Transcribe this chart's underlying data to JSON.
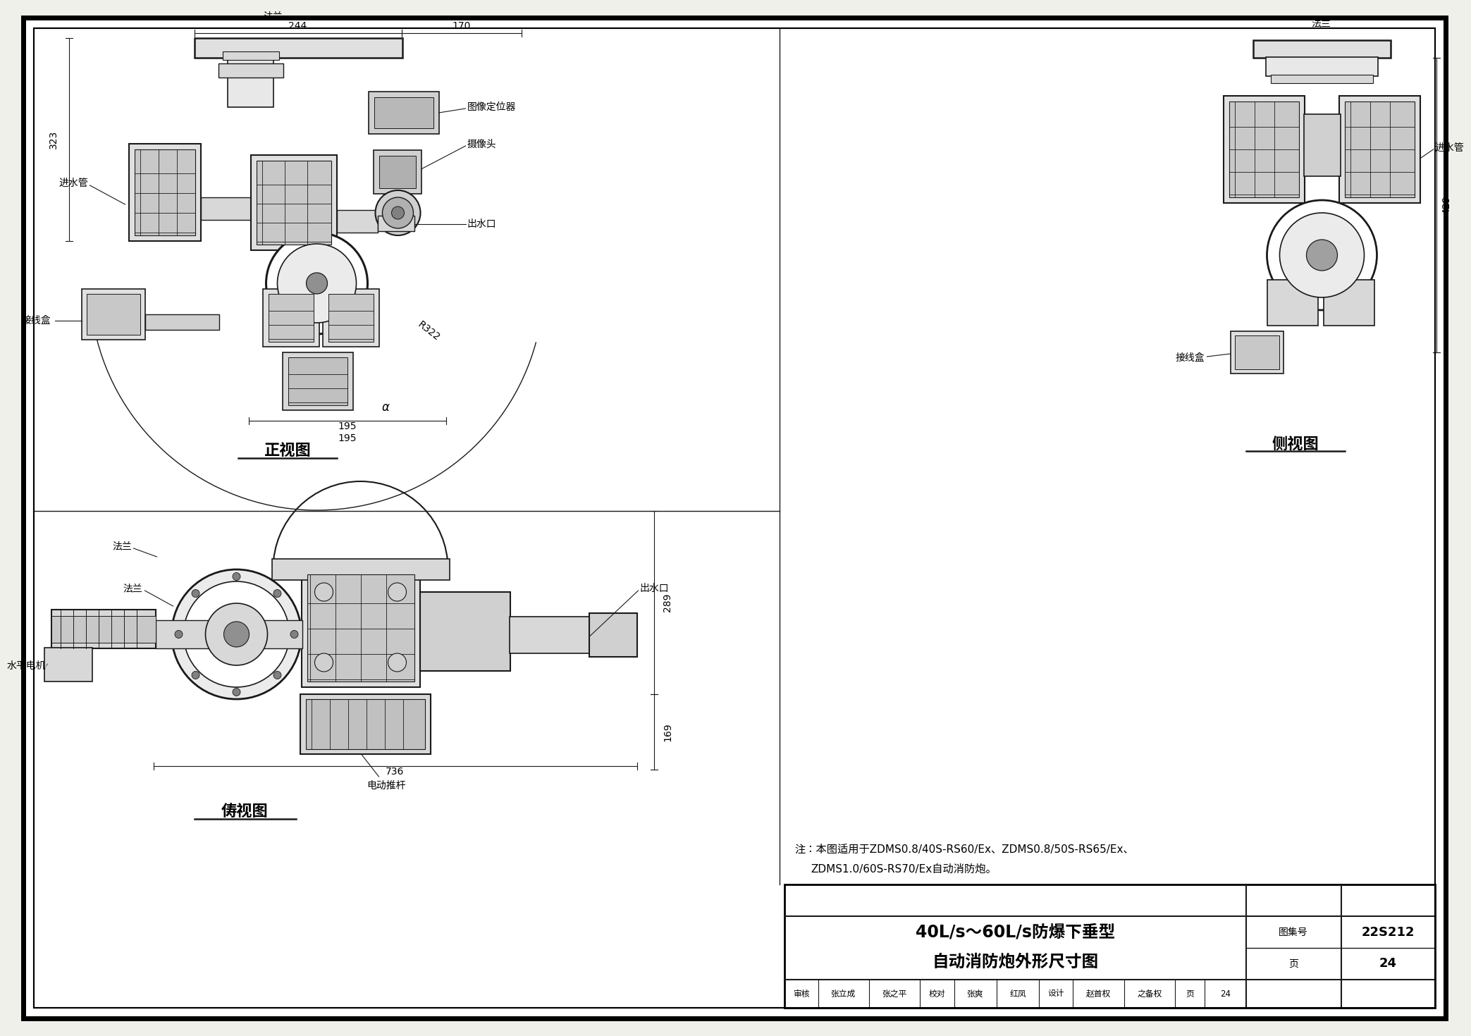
{
  "page_bg": "#f0f0eb",
  "draw_bg": "#ffffff",
  "line_color": "#1a1a1a",
  "title1": "40L/s～60L/s防爆下垂型",
  "title2": "自动消防炮外形尺寸图",
  "atlas_label": "图集号",
  "atlas_no": "22S212",
  "page_label": "页",
  "page_no": "24",
  "note1": "注：本图适用于ZDMS0.8/40S-RS60/Ex、ZDMS0.8/50S-RS65/Ex、",
  "note2": "ZDMS1.0/60S-RS70/Ex自动消防炮。",
  "view1_title": "正视图",
  "view2_title": "侧视图",
  "view3_title": "俦视图",
  "label_falan": "法兰",
  "label_jinshui": "进水管",
  "label_chushui": "出水口",
  "label_jiexianhe": "接线盒",
  "label_tuxiang": "图像定位器",
  "label_shexiangtou": "摄像头",
  "label_shuipindianji": "水平电机",
  "label_diandong": "电动推杆",
  "dim_244": "244",
  "dim_170": "170",
  "dim_323": "323",
  "dim_R322": "R322",
  "dim_195": "195",
  "dim_429": "429",
  "dim_289": "289",
  "dim_169": "169",
  "dim_736": "736",
  "persons": [
    "审核",
    "张立成",
    "张之平",
    "校对",
    "张爽",
    "红凤",
    "设计",
    "赵首权",
    "之备权",
    "页",
    "24"
  ],
  "person_widths": [
    48,
    72,
    72,
    48,
    60,
    60,
    48,
    72,
    72,
    42,
    58
  ]
}
